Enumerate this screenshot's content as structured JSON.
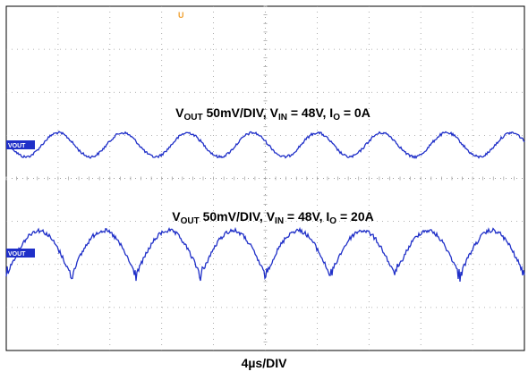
{
  "chart_data": {
    "type": "line",
    "title": "",
    "xlabel": "4µs/DIV",
    "ylabel": "",
    "grid": true,
    "trigger_marker": "U",
    "colors": {
      "trace": "#1f2fc8",
      "grid": "#9a9a9a",
      "trigger": "#f0a030",
      "ref_marker": "#1f2fc8"
    },
    "series": [
      {
        "name": "VOUT 50mV/DIV, VIN = 48V, IO = 0A",
        "label_parts": {
          "v": "V",
          "v_sub": "OUT",
          "scale": " 50mV/DIV, ",
          "vin": "V",
          "vin_sub": "IN",
          "vin_val": " = 48V, ",
          "io": "I",
          "io_sub": "O",
          "io_val": " = 0A"
        },
        "ref_marker": "VOUT",
        "waveform": "sine",
        "cycles": 8,
        "phase_div": 0.45,
        "peak_to_peak_mV": 28,
        "noise_mV": 1.5
      },
      {
        "name": "VOUT 50mV/DIV, VIN = 48V, IO = 20A",
        "label_parts": {
          "v": "V",
          "v_sub": "OUT",
          "scale": " 50mV/DIV, ",
          "vin": "V",
          "vin_sub": "IN",
          "vin_val": " = 48V, ",
          "io": "I",
          "io_sub": "O",
          "io_val": " = 20A"
        },
        "ref_marker": "VOUT",
        "waveform": "ripple-with-spikes",
        "cycles": 8,
        "phase_div": 0.0,
        "peak_to_peak_mV": 55,
        "noise_mV": 2.5
      }
    ]
  }
}
